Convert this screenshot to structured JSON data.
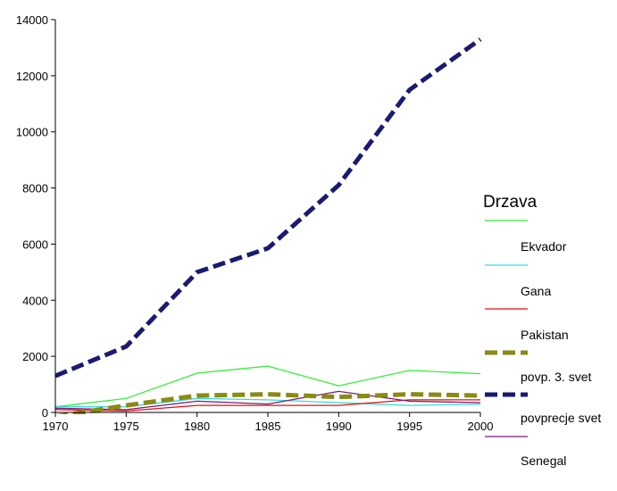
{
  "chart_data": {
    "type": "line",
    "title": "",
    "xlabel": "",
    "ylabel": "",
    "x": [
      1970,
      1975,
      1980,
      1985,
      1990,
      1995,
      2000
    ],
    "xlim": [
      1970,
      2000
    ],
    "ylim": [
      0,
      14000
    ],
    "x_ticks": [
      "1970",
      "1975",
      "1980",
      "1985",
      "1990",
      "1995",
      "2000"
    ],
    "y_ticks": [
      "0",
      "2000",
      "4000",
      "6000",
      "8000",
      "10000",
      "12000",
      "14000"
    ],
    "grid": false,
    "legend": {
      "title": "Drzava",
      "placement": "right",
      "entries": [
        "Ekvador",
        "Gana",
        "Pakistan",
        "povp. 3. svet",
        "povprecje svet",
        "Senegal"
      ]
    },
    "series": [
      {
        "name": "Ekvador",
        "color": "#33ee33",
        "style": "solid",
        "values": [
          200,
          500,
          1400,
          1650,
          950,
          1500,
          1380
        ]
      },
      {
        "name": "Gana",
        "color": "#33dddd",
        "style": "solid",
        "values": [
          200,
          200,
          500,
          450,
          350,
          250,
          300
        ]
      },
      {
        "name": "Pakistan",
        "color": "#dd1111",
        "style": "solid",
        "values": [
          100,
          50,
          250,
          250,
          250,
          450,
          450
        ]
      },
      {
        "name": "povp. 3. svet",
        "color": "#8a8a14",
        "style": "dashed",
        "values": [
          -150,
          250,
          600,
          650,
          550,
          650,
          600
        ]
      },
      {
        "name": "povprecje svet",
        "color": "#1a1a70",
        "style": "dashed",
        "values": [
          1300,
          2350,
          5000,
          5850,
          8100,
          11500,
          13300
        ]
      },
      {
        "name": "Senegal",
        "color": "#7a1a7a",
        "style": "solid",
        "values": [
          150,
          100,
          400,
          300,
          750,
          400,
          350
        ]
      }
    ]
  }
}
